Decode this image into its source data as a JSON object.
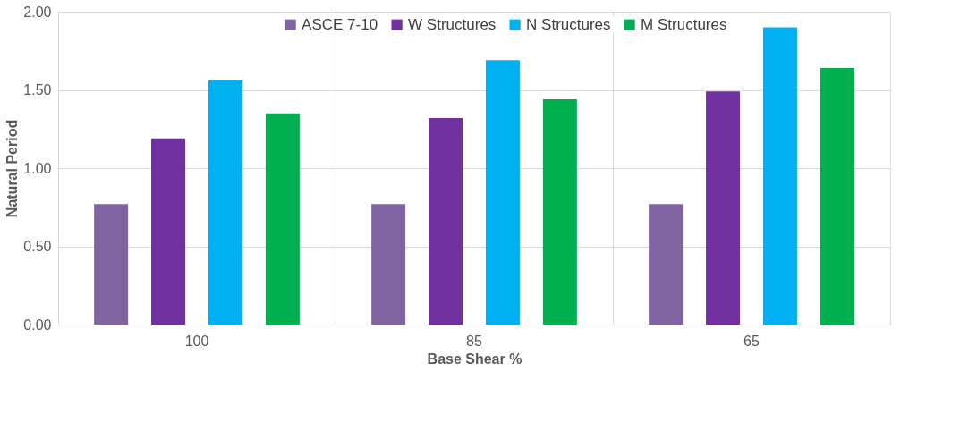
{
  "chart_data": {
    "type": "bar",
    "xlabel": "Base Shear %",
    "ylabel": "Natural Period",
    "categories": [
      "100",
      "85",
      "65"
    ],
    "series": [
      {
        "name": "ASCE 7-10",
        "color": "#8064a2",
        "values": [
          0.77,
          0.77,
          0.77
        ]
      },
      {
        "name": "W Structures",
        "color": "#7030a0",
        "values": [
          1.19,
          1.32,
          1.49
        ]
      },
      {
        "name": "N Structures",
        "color": "#00b0f0",
        "values": [
          1.56,
          1.69,
          1.9
        ]
      },
      {
        "name": "M Structures",
        "color": "#00b050",
        "values": [
          1.35,
          1.44,
          1.64
        ]
      }
    ],
    "ylim": [
      0,
      2
    ],
    "yticks": [
      {
        "value": 0,
        "label": "0.00"
      },
      {
        "value": 0.5,
        "label": "0.50"
      },
      {
        "value": 1,
        "label": "1.00"
      },
      {
        "value": 1.5,
        "label": "1.50"
      },
      {
        "value": 2,
        "label": "2.00"
      }
    ],
    "grid": true,
    "legend": "top"
  }
}
